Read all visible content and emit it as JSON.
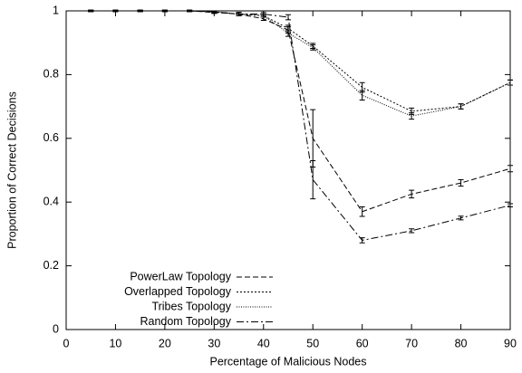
{
  "chart_data": {
    "type": "line",
    "xlabel": "Percentage of Malicious Nodes",
    "ylabel": "Proportion of Correct Decisions",
    "x": [
      5,
      10,
      15,
      20,
      25,
      30,
      35,
      40,
      45,
      50,
      60,
      70,
      80,
      90
    ],
    "xlim": [
      0,
      90
    ],
    "xticks": [
      0,
      10,
      20,
      30,
      40,
      50,
      60,
      70,
      80,
      90
    ],
    "ylim": [
      0,
      1
    ],
    "yticks": [
      0,
      0.2,
      0.4,
      0.6,
      0.8,
      1
    ],
    "grid": false,
    "legend": "lower left",
    "series": [
      {
        "name": "PowerLaw Topology",
        "color": "#000000",
        "dash": "6,3",
        "values": [
          1,
          1,
          1,
          1,
          1,
          0.995,
          0.99,
          0.975,
          0.94,
          0.6,
          0.37,
          0.425,
          0.46,
          0.505
        ],
        "errors": [
          0.002,
          0.002,
          0.002,
          0.002,
          0.002,
          0.003,
          0.005,
          0.005,
          0.01,
          0.09,
          0.015,
          0.012,
          0.01,
          0.01
        ]
      },
      {
        "name": "Overlapped Topology",
        "color": "#000000",
        "dash": "2,2",
        "values": [
          1,
          1,
          1,
          1,
          1,
          0.997,
          0.99,
          0.985,
          0.945,
          0.89,
          0.76,
          0.685,
          0.7,
          0.775
        ],
        "errors": [
          0.002,
          0.002,
          0.002,
          0.002,
          0.002,
          0.003,
          0.005,
          0.005,
          0.01,
          0.008,
          0.015,
          0.01,
          0.008,
          0.008
        ]
      },
      {
        "name": "Tribes Topology",
        "color": "#000000",
        "dash": "1,1.5",
        "values": [
          1,
          1,
          1,
          1,
          1,
          0.997,
          0.99,
          0.985,
          0.93,
          0.885,
          0.735,
          0.67,
          0.7,
          0.775
        ],
        "errors": [
          0.002,
          0.002,
          0.002,
          0.002,
          0.002,
          0.003,
          0.005,
          0.005,
          0.01,
          0.008,
          0.015,
          0.01,
          0.008,
          0.008
        ]
      },
      {
        "name": "Random Topology",
        "color": "#000000",
        "dash": "8,3,2,3",
        "values": [
          1,
          1,
          1,
          1,
          1,
          0.997,
          0.99,
          0.99,
          0.98,
          0.47,
          0.28,
          0.31,
          0.35,
          0.39
        ],
        "errors": [
          0.002,
          0.002,
          0.002,
          0.002,
          0.002,
          0.003,
          0.005,
          0.005,
          0.008,
          0.06,
          0.008,
          0.006,
          0.006,
          0.005
        ]
      }
    ]
  }
}
